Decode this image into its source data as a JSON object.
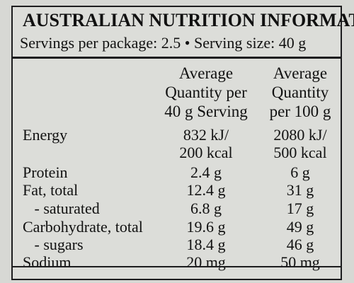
{
  "title": "AUSTRALIAN NUTRITION INFORMATION",
  "servings": "Servings per package: 2.5  •  Serving size: 40 g",
  "columns": {
    "per_serving": [
      "Average",
      "Quantity per",
      "40 g Serving"
    ],
    "per_100g": [
      "Average",
      "Quantity",
      "per 100 g"
    ]
  },
  "rows": [
    {
      "label": "Energy",
      "serving": [
        "832 kJ/",
        "200 kcal"
      ],
      "per100": [
        "2080 kJ/",
        "500 kcal"
      ]
    },
    {
      "label": "Protein",
      "serving": "2.4 g",
      "per100": "6 g"
    },
    {
      "label": "Fat, total",
      "serving": "12.4 g",
      "per100": "31 g"
    },
    {
      "label": "   - saturated",
      "serving": "6.8 g",
      "per100": "17 g"
    },
    {
      "label": "Carbohydrate, total",
      "serving": "19.6 g",
      "per100": "49 g"
    },
    {
      "label": "   - sugars",
      "serving": "18.4 g",
      "per100": "46 g"
    },
    {
      "label": "Sodium",
      "serving": "20 mg",
      "per100": "50 mg"
    }
  ]
}
